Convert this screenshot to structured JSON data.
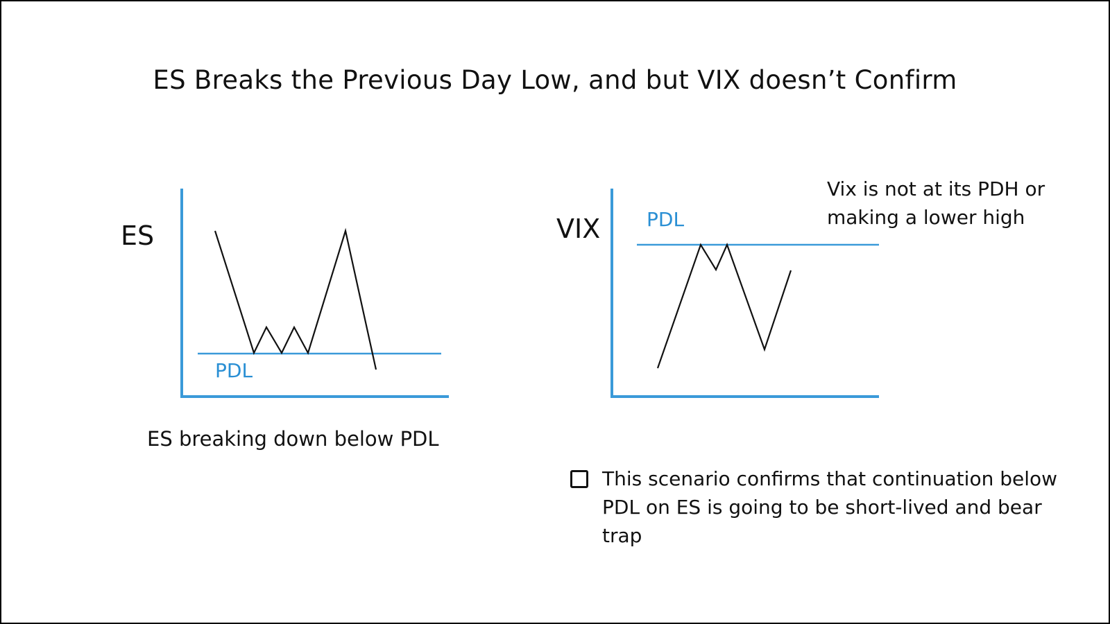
{
  "title": "ES Breaks the Previous Day Low, and but VIX doesn’t Confirm",
  "colors": {
    "axis": "#3a9ad9",
    "level_line": "#3a9ad9",
    "price_line": "#111111",
    "level_label": "#2a8fd4"
  },
  "es_panel": {
    "label": "ES",
    "level_label": "PDL",
    "caption": "ES breaking down below PDL"
  },
  "vix_panel": {
    "label": "VIX",
    "level_label": "PDL",
    "note": "Vix is not at its PDH or making a lower high"
  },
  "conclusion": {
    "checkbox_checked": false,
    "text": "This scenario confirms that continuation below PDL on ES is going to be short-lived and bear trap"
  }
}
